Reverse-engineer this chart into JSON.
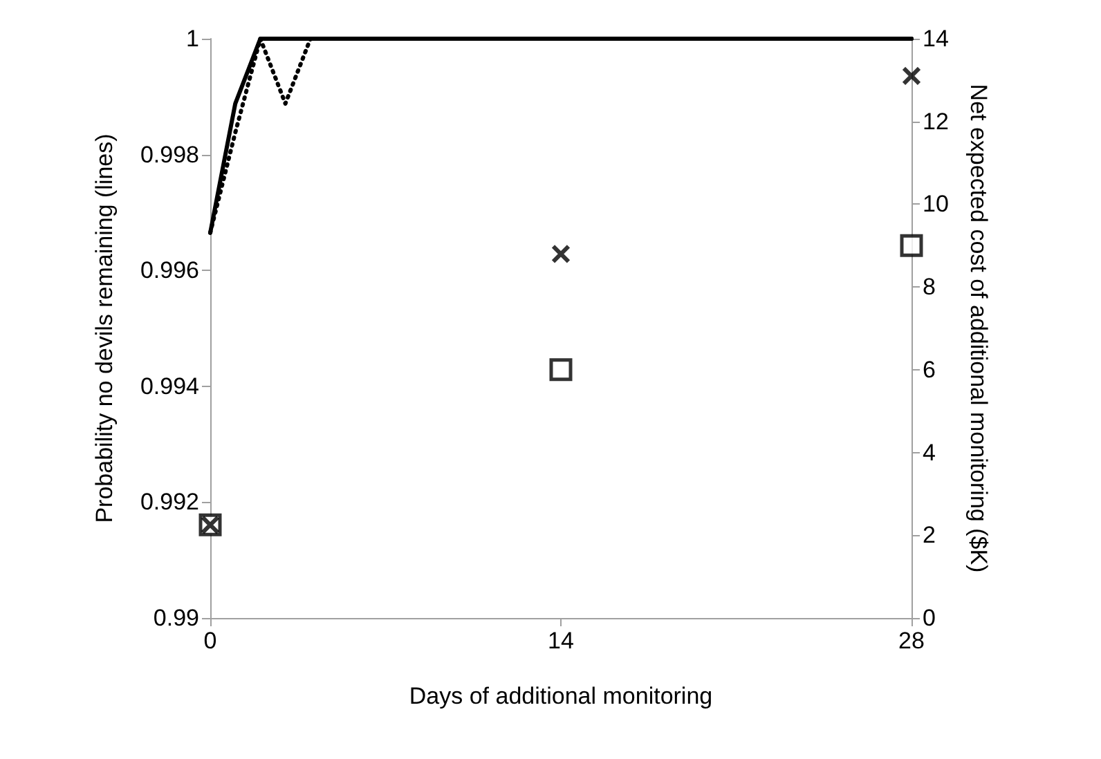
{
  "chart_data": {
    "type": "line",
    "xlabel": "Days of additional monitoring",
    "ylabel": "Probability no devils remaining (lines)",
    "y2label": "Net expected cost of additional monitoring ($K)",
    "xlim": [
      0,
      28
    ],
    "xticks": [
      0,
      14,
      28
    ],
    "ylim": [
      0.99,
      1
    ],
    "yticks": [
      0.99,
      0.992,
      0.994,
      0.996,
      0.998,
      1
    ],
    "y2lim": [
      0,
      14
    ],
    "y2ticks": [
      0,
      2,
      4,
      6,
      8,
      10,
      12,
      14
    ],
    "grid": false,
    "series": [
      {
        "color": "#000000",
        "line_style": "solid",
        "marker": "none",
        "x": [
          0,
          1,
          2,
          28
        ],
        "values": [
          0.99665,
          0.99888,
          1,
          1
        ]
      },
      {
        "color": "#000000",
        "line_style": "dotted",
        "marker": "none",
        "x": [
          0,
          1,
          2,
          3,
          4,
          28
        ],
        "values": [
          0.99665,
          0.99838,
          1,
          0.99888,
          1,
          1
        ]
      },
      {
        "type": "scatter",
        "axis": "y2",
        "color": "#000000",
        "marker": "square",
        "x": [
          0,
          14,
          28
        ],
        "values": [
          2.25,
          6,
          9
        ]
      },
      {
        "type": "scatter",
        "axis": "y2",
        "color": "#000000",
        "marker": "cross",
        "x": [
          0,
          14,
          28
        ],
        "values": [
          2.25,
          8.8,
          13.1
        ]
      }
    ]
  }
}
